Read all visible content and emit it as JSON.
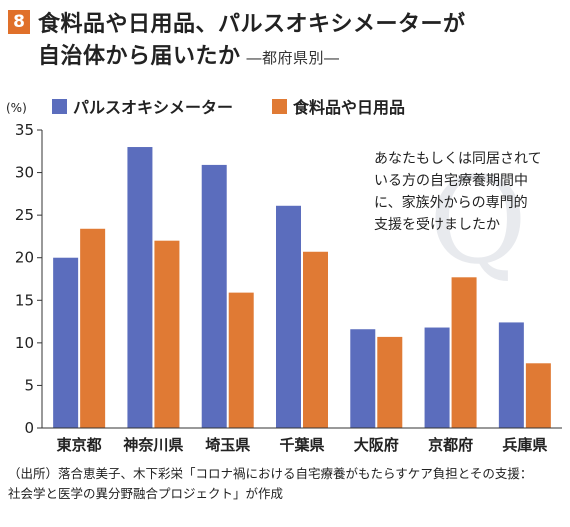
{
  "header": {
    "badge": "8",
    "title_line1": "食料品や日用品、パルスオキシメーターが",
    "title_line2": "自治体から届いたか",
    "subtitle": "―都府県別―"
  },
  "chart_data": {
    "type": "bar",
    "unit_label": "(%)",
    "categories": [
      "東京都",
      "神奈川県",
      "埼玉県",
      "千葉県",
      "大阪府",
      "京都府",
      "兵庫県"
    ],
    "series": [
      {
        "name": "パルスオキシメーター",
        "color": "#5b6dbd",
        "values": [
          20.0,
          33.0,
          30.9,
          26.1,
          11.6,
          11.8,
          12.4
        ]
      },
      {
        "name": "食料品や日用品",
        "color": "#e07a34",
        "values": [
          23.4,
          22.0,
          15.9,
          20.7,
          10.7,
          17.7,
          7.6
        ]
      }
    ],
    "ylim": [
      0,
      35
    ],
    "yticks": [
      0,
      5,
      10,
      15,
      20,
      25,
      30,
      35
    ],
    "annotation": [
      "あなたもしくは同居されて",
      "いる方の自宅療養期間中",
      "に、家族外からの専門的",
      "支援を受けましたか"
    ],
    "watermark_letter": "Q",
    "legend_position": "top"
  },
  "source": {
    "line1": "（出所）落合恵美子、木下彩栄「コロナ禍における自宅療養がもたらすケア負担とその支援：",
    "line2": "社会学と医学の異分野融合プロジェクト」が作成"
  }
}
